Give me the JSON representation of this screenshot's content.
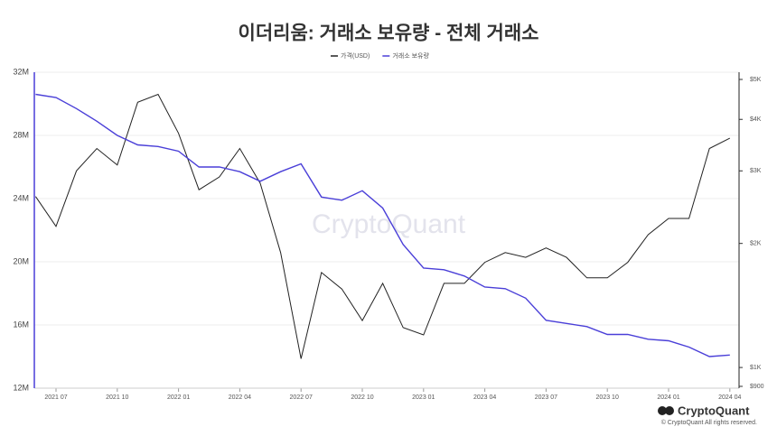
{
  "chart_data": {
    "type": "line",
    "title": "이더리움: 거래소 보유량 - 전체 거래소",
    "watermark": "CryptoQuant",
    "brand": "CryptoQuant",
    "copyright": "© CryptoQuant All rights reserved.",
    "x": [
      "2021 06",
      "2021 07",
      "2021 08",
      "2021 09",
      "2021 10",
      "2021 11",
      "2021 12",
      "2022 01",
      "2022 02",
      "2022 03",
      "2022 04",
      "2022 05",
      "2022 06",
      "2022 07",
      "2022 08",
      "2022 09",
      "2022 10",
      "2022 11",
      "2022 12",
      "2023 01",
      "2023 02",
      "2023 03",
      "2023 04",
      "2023 05",
      "2023 06",
      "2023 07",
      "2023 08",
      "2023 09",
      "2023 10",
      "2023 11",
      "2023 12",
      "2024 01",
      "2024 02",
      "2024 03",
      "2024 04"
    ],
    "xticks": [
      "2021 07",
      "2021 10",
      "2022 01",
      "2022 04",
      "2022 07",
      "2022 10",
      "2023 01",
      "2023 04",
      "2023 07",
      "2023 10",
      "2024 01",
      "2024 04"
    ],
    "series": [
      {
        "name": "가격(USD)",
        "color": "#222222",
        "axis": "y2",
        "values": [
          2600,
          2200,
          3000,
          3400,
          3100,
          4400,
          4600,
          3700,
          2700,
          2900,
          3400,
          2800,
          1900,
          1050,
          1700,
          1550,
          1300,
          1600,
          1250,
          1200,
          1600,
          1600,
          1800,
          1900,
          1850,
          1950,
          1850,
          1650,
          1650,
          1800,
          2100,
          2300,
          2300,
          3400,
          3600
        ]
      },
      {
        "name": "거래소 보유량",
        "color": "#4a3fd8",
        "values": [
          30600000,
          30400000,
          29700000,
          28900000,
          28000000,
          27400000,
          27300000,
          27000000,
          26000000,
          26000000,
          25700000,
          25100000,
          25700000,
          26200000,
          24100000,
          23900000,
          24500000,
          23400000,
          21100000,
          19600000,
          19500000,
          19100000,
          18400000,
          18300000,
          17700000,
          16300000,
          16100000,
          15900000,
          15400000,
          15400000,
          15100000,
          15000000,
          14600000,
          14000000,
          14100000
        ]
      }
    ],
    "ylim": [
      12000000,
      32000000
    ],
    "yticks": [
      {
        "value": 12000000,
        "label": "12M"
      },
      {
        "value": 16000000,
        "label": "16M"
      },
      {
        "value": 20000000,
        "label": "20M"
      },
      {
        "value": 24000000,
        "label": "24M"
      },
      {
        "value": 28000000,
        "label": "28M"
      },
      {
        "value": 32000000,
        "label": "32M"
      }
    ],
    "y2lim": [
      900,
      5000
    ],
    "y2log": true,
    "y2ticks": [
      {
        "value": 900,
        "label": "$900"
      },
      {
        "value": 1000,
        "label": "$1K"
      },
      {
        "value": 2000,
        "label": "$2K"
      },
      {
        "value": 3000,
        "label": "$3K"
      },
      {
        "value": 4000,
        "label": "$4K"
      },
      {
        "value": 5000,
        "label": "$5K"
      }
    ],
    "grid": true
  }
}
